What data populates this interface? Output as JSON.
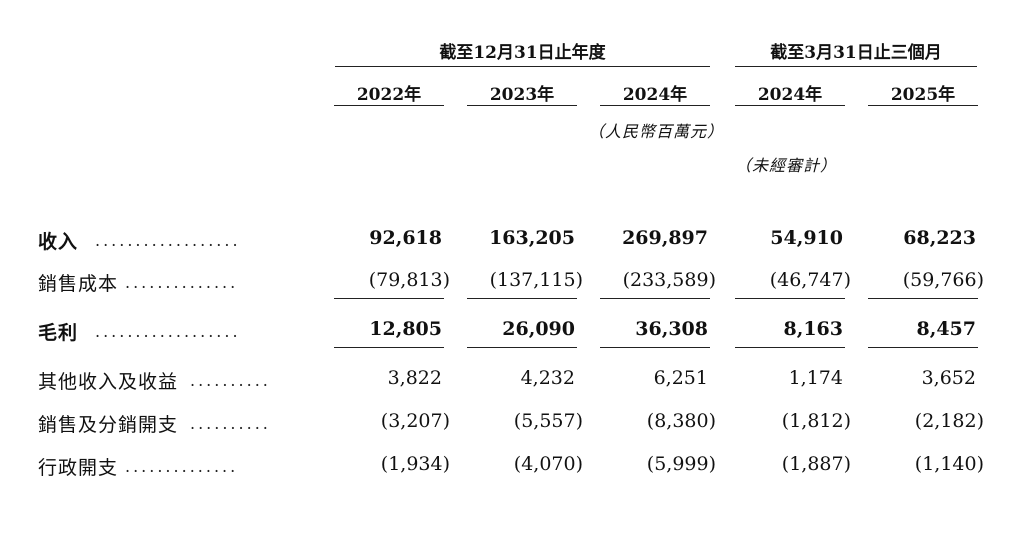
{
  "header": {
    "group_annual": "截至12月31日止年度",
    "group_quarter": "截至3月31日止三個月",
    "years": [
      "2022年",
      "2023年",
      "2024年",
      "2024年",
      "2025年"
    ],
    "unit_note": "（人民幣百萬元）",
    "unaudited_note": "（未經審計）"
  },
  "rows": [
    {
      "label": "收入",
      "dots": "..................",
      "values": [
        "92,618",
        "163,205",
        "269,897",
        "54,910",
        "68,223"
      ]
    },
    {
      "label": "銷售成本",
      "dots": "..............",
      "values": [
        "(79,813)",
        "(137,115)",
        "(233,589)",
        "(46,747)",
        "(59,766)"
      ]
    },
    {
      "label": "毛利",
      "dots": "..................",
      "values": [
        "12,805",
        "26,090",
        "36,308",
        "8,163",
        "8,457"
      ]
    },
    {
      "label": "其他收入及收益",
      "dots": "..........",
      "values": [
        "3,822",
        "4,232",
        "6,251",
        "1,174",
        "3,652"
      ]
    },
    {
      "label": "銷售及分銷開支",
      "dots": "..........",
      "values": [
        "(3,207)",
        "(5,557)",
        "(8,380)",
        "(1,812)",
        "(2,182)"
      ]
    },
    {
      "label": "行政開支",
      "dots": "..............",
      "values": [
        "(1,934)",
        "(4,070)",
        "(5,999)",
        "(1,887)",
        "(1,140)"
      ]
    }
  ]
}
